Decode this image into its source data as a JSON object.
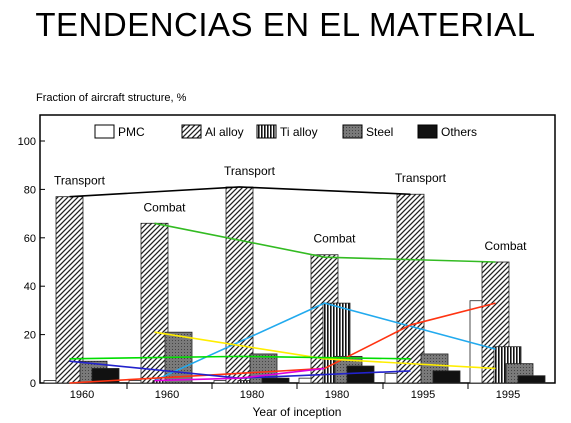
{
  "page_title": "TENDENCIAS EN EL MATERIAL",
  "chart_data": {
    "type": "bar",
    "ylabel": "Fraction of aircraft structure, %",
    "xlabel": "Year of inception",
    "ylim": [
      0,
      100
    ],
    "yticks": [
      0,
      20,
      40,
      60,
      80,
      100
    ],
    "categories": [
      "1960",
      "1960",
      "1980",
      "1980",
      "1995",
      "1995"
    ],
    "group_labels": [
      "Transport",
      "Combat",
      "Transport",
      "Combat",
      "Transport",
      "Combat"
    ],
    "legend_position": "top-right",
    "grid": false,
    "series": [
      {
        "name": "PMC",
        "values": [
          1,
          1,
          1,
          2,
          4,
          34
        ]
      },
      {
        "name": "Al alloy",
        "values": [
          77,
          66,
          81,
          53,
          78,
          50
        ]
      },
      {
        "name": "Ti alloy",
        "values": [
          0,
          1,
          1,
          33,
          0,
          15
        ]
      },
      {
        "name": "Steel",
        "values": [
          9,
          21,
          12,
          11,
          12,
          8
        ]
      },
      {
        "name": "Others",
        "values": [
          6,
          0,
          2,
          7,
          5,
          3
        ]
      }
    ],
    "trend_lines": [
      {
        "color": "#000000",
        "points": [
          [
            0,
            77
          ],
          [
            2,
            81
          ],
          [
            4,
            78
          ]
        ]
      },
      {
        "color": "#33bb22",
        "points": [
          [
            1,
            66
          ],
          [
            3,
            52
          ],
          [
            5,
            50
          ]
        ]
      },
      {
        "color": "#22aaee",
        "points": [
          [
            1,
            1
          ],
          [
            3,
            33
          ],
          [
            5,
            14
          ]
        ]
      },
      {
        "color": "#ff3311",
        "points": [
          [
            0,
            0
          ],
          [
            1,
            2
          ],
          [
            3,
            6
          ],
          [
            4,
            24
          ],
          [
            5,
            33
          ]
        ]
      },
      {
        "color": "#ffee00",
        "points": [
          [
            1,
            21
          ],
          [
            3,
            10
          ],
          [
            5,
            6
          ]
        ]
      },
      {
        "color": "#00dd00",
        "points": [
          [
            0,
            10
          ],
          [
            2,
            11
          ],
          [
            4,
            10
          ]
        ]
      },
      {
        "color": "#2222cc",
        "points": [
          [
            0,
            9
          ],
          [
            2,
            2
          ],
          [
            4,
            5
          ]
        ]
      },
      {
        "color": "#dd00dd",
        "points": [
          [
            1,
            1
          ],
          [
            2,
            2
          ],
          [
            3,
            6
          ]
        ]
      }
    ]
  }
}
